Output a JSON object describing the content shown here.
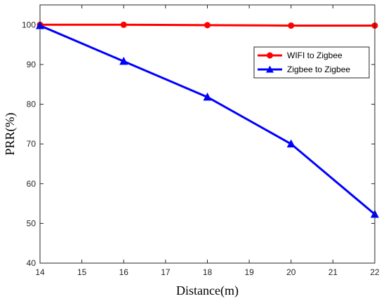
{
  "chart_data": {
    "type": "line",
    "title": "",
    "xlabel": "Distance(m)",
    "ylabel": "PRR(%)",
    "xlim": [
      14,
      22
    ],
    "ylim": [
      40,
      105
    ],
    "xticks": [
      14,
      15,
      16,
      17,
      18,
      19,
      20,
      21,
      22
    ],
    "yticks": [
      40,
      50,
      60,
      70,
      80,
      90,
      100
    ],
    "grid": false,
    "legend_position": "upper-right",
    "series": [
      {
        "name": "WIFI to Zigbee",
        "color": "#ff0000",
        "marker": "circle",
        "x": [
          14,
          16,
          18,
          20,
          22
        ],
        "y": [
          100,
          100,
          99.9,
          99.8,
          99.8
        ]
      },
      {
        "name": "Zigbee to Zigbee",
        "color": "#0000ff",
        "marker": "triangle",
        "x": [
          14,
          16,
          18,
          20,
          22
        ],
        "y": [
          99.8,
          90.8,
          81.8,
          70,
          52.3
        ]
      }
    ]
  }
}
